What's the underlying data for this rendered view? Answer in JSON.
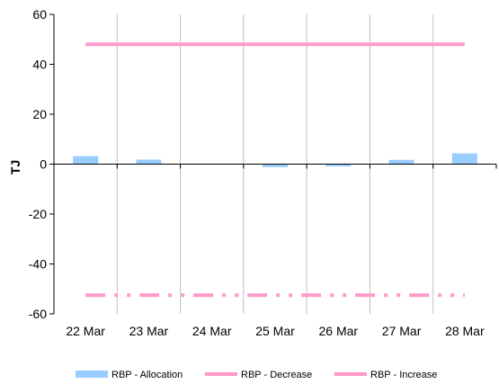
{
  "chart_data": {
    "type": "bar",
    "categories": [
      "22 Mar",
      "23 Mar",
      "24 Mar",
      "25 Mar",
      "26 Mar",
      "27 Mar",
      "28 Mar"
    ],
    "ylabel": "TJ",
    "ylim": [
      -60,
      60
    ],
    "yticks": [
      60,
      40,
      20,
      0,
      -20,
      -40,
      -60
    ],
    "grid": "vertical",
    "legend_position": "bottom",
    "series": [
      {
        "name": "RBP - Allocation",
        "type": "bar",
        "color": "#99ccff",
        "values": [
          3.2,
          1.8,
          0.1,
          -1.2,
          -0.9,
          1.7,
          4.3
        ]
      },
      {
        "name": "RBP - Decrease",
        "type": "line",
        "style": "dash-dot",
        "color": "#ff99cc",
        "values": [
          -52.5,
          -52.5,
          -52.5,
          -52.5,
          -52.5,
          -52.5,
          -52.5
        ]
      },
      {
        "name": "RBP - Increase",
        "type": "line",
        "style": "solid",
        "color": "#ff99cc",
        "values": [
          48,
          48,
          48,
          48,
          48,
          48,
          48
        ]
      }
    ]
  }
}
